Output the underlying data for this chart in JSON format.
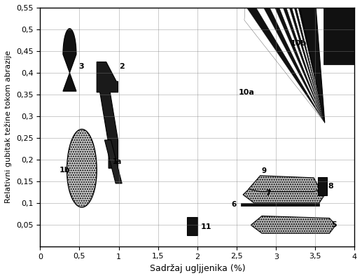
{
  "xlim": [
    0,
    4
  ],
  "ylim": [
    0,
    0.55
  ],
  "xticks": [
    0,
    0.5,
    1.0,
    1.5,
    2.0,
    2.5,
    3.0,
    3.5,
    4.0
  ],
  "yticks": [
    0.05,
    0.1,
    0.15,
    0.2,
    0.25,
    0.3,
    0.35,
    0.4,
    0.45,
    0.5,
    0.55
  ],
  "xtick_labels": [
    "0",
    "0,5",
    "1",
    "1,5",
    "2",
    "2,5",
    "3",
    "3,5",
    "4"
  ],
  "ytick_labels": [
    "0,05",
    "0,1",
    "0,15",
    "0,2",
    "0,25",
    "0,3",
    "0,35",
    "0,4",
    "0,45",
    "0,5",
    "0,55"
  ],
  "xlabel": "Sadržaj ugljjenika (%)",
  "ylabel": "Relativni gubitak težine tokom abrazije",
  "black": "#111111",
  "gray": "#999999",
  "lightgray": "#cccccc"
}
